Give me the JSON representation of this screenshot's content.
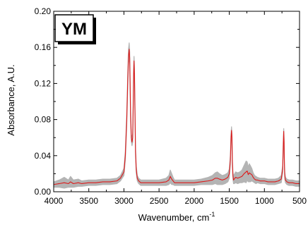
{
  "chart_data": {
    "type": "line",
    "tag": "YM",
    "xlabel_main": "Wavenumber, cm",
    "xlabel_sup": "-1",
    "ylabel": "Absorbance, A.U.",
    "xlim": [
      4000,
      500
    ],
    "ylim": [
      0,
      0.2
    ],
    "x_reversed": true,
    "grid": false,
    "x_ticks": [
      {
        "value": 4000,
        "label": "4000"
      },
      {
        "value": 3500,
        "label": "3500"
      },
      {
        "value": 3000,
        "label": "3000"
      },
      {
        "value": 2500,
        "label": "2500"
      },
      {
        "value": 2000,
        "label": "2000"
      },
      {
        "value": 1500,
        "label": "1500"
      },
      {
        "value": 1000,
        "label": "1000"
      },
      {
        "value": 500,
        "label": "500"
      }
    ],
    "y_ticks": [
      {
        "value": 0.0,
        "label": "0.00"
      },
      {
        "value": 0.04,
        "label": "0.04"
      },
      {
        "value": 0.08,
        "label": "0.08"
      },
      {
        "value": 0.12,
        "label": "0.12"
      },
      {
        "value": 0.16,
        "label": "0.16"
      },
      {
        "value": 0.2,
        "label": "0.20"
      }
    ],
    "colors": {
      "mean": "#dd1a1a",
      "band": "#b4b4b4",
      "axis": "#000000",
      "tag_shadow": "#000000"
    },
    "series": [
      {
        "role": "mean",
        "x": [
          4000,
          3920,
          3850,
          3790,
          3760,
          3720,
          3650,
          3600,
          3500,
          3400,
          3300,
          3200,
          3100,
          3050,
          3000,
          2980,
          2960,
          2945,
          2935,
          2925,
          2918,
          2912,
          2905,
          2895,
          2885,
          2875,
          2868,
          2862,
          2856,
          2850,
          2843,
          2835,
          2825,
          2810,
          2790,
          2760,
          2700,
          2600,
          2500,
          2400,
          2360,
          2340,
          2320,
          2300,
          2280,
          2250,
          2200,
          2100,
          2000,
          1900,
          1800,
          1740,
          1700,
          1670,
          1640,
          1600,
          1560,
          1520,
          1500,
          1485,
          1475,
          1468,
          1462,
          1456,
          1448,
          1440,
          1430,
          1410,
          1380,
          1350,
          1320,
          1290,
          1260,
          1245,
          1230,
          1215,
          1200,
          1180,
          1160,
          1140,
          1120,
          1100,
          1060,
          1000,
          950,
          900,
          850,
          800,
          760,
          740,
          730,
          725,
          720,
          715,
          710,
          700,
          680,
          650,
          600,
          550,
          500
        ],
        "y": [
          0.008,
          0.009,
          0.01,
          0.009,
          0.011,
          0.009,
          0.01,
          0.009,
          0.01,
          0.01,
          0.011,
          0.011,
          0.012,
          0.015,
          0.022,
          0.04,
          0.08,
          0.125,
          0.15,
          0.158,
          0.148,
          0.12,
          0.085,
          0.06,
          0.055,
          0.06,
          0.095,
          0.13,
          0.145,
          0.13,
          0.09,
          0.045,
          0.025,
          0.015,
          0.012,
          0.01,
          0.01,
          0.01,
          0.01,
          0.011,
          0.013,
          0.017,
          0.014,
          0.012,
          0.01,
          0.01,
          0.01,
          0.01,
          0.01,
          0.011,
          0.012,
          0.013,
          0.015,
          0.015,
          0.014,
          0.013,
          0.014,
          0.016,
          0.02,
          0.035,
          0.06,
          0.068,
          0.06,
          0.032,
          0.018,
          0.013,
          0.014,
          0.016,
          0.015,
          0.016,
          0.017,
          0.02,
          0.022,
          0.023,
          0.019,
          0.021,
          0.02,
          0.019,
          0.016,
          0.014,
          0.013,
          0.013,
          0.012,
          0.012,
          0.011,
          0.011,
          0.011,
          0.012,
          0.014,
          0.025,
          0.055,
          0.067,
          0.055,
          0.03,
          0.018,
          0.013,
          0.011,
          0.01,
          0.01,
          0.009,
          0.009
        ]
      },
      {
        "role": "band-upper",
        "x": [
          4000,
          3920,
          3850,
          3790,
          3760,
          3720,
          3650,
          3600,
          3500,
          3400,
          3300,
          3200,
          3100,
          3050,
          3000,
          2980,
          2960,
          2945,
          2935,
          2925,
          2918,
          2912,
          2905,
          2895,
          2885,
          2875,
          2868,
          2862,
          2856,
          2850,
          2843,
          2835,
          2825,
          2810,
          2790,
          2760,
          2700,
          2600,
          2500,
          2400,
          2360,
          2340,
          2320,
          2300,
          2280,
          2250,
          2200,
          2100,
          2000,
          1900,
          1800,
          1740,
          1700,
          1670,
          1640,
          1600,
          1560,
          1520,
          1500,
          1485,
          1475,
          1468,
          1462,
          1456,
          1448,
          1440,
          1430,
          1410,
          1380,
          1350,
          1320,
          1290,
          1260,
          1245,
          1230,
          1215,
          1200,
          1180,
          1160,
          1140,
          1120,
          1100,
          1060,
          1000,
          950,
          900,
          850,
          800,
          760,
          740,
          730,
          725,
          720,
          715,
          710,
          700,
          680,
          650,
          600,
          550,
          500
        ],
        "y": [
          0.011,
          0.013,
          0.016,
          0.013,
          0.017,
          0.013,
          0.014,
          0.012,
          0.013,
          0.013,
          0.014,
          0.014,
          0.015,
          0.018,
          0.026,
          0.045,
          0.086,
          0.132,
          0.158,
          0.165,
          0.155,
          0.126,
          0.09,
          0.064,
          0.059,
          0.065,
          0.1,
          0.136,
          0.15,
          0.136,
          0.095,
          0.049,
          0.029,
          0.018,
          0.015,
          0.013,
          0.013,
          0.013,
          0.013,
          0.015,
          0.018,
          0.024,
          0.02,
          0.016,
          0.013,
          0.013,
          0.013,
          0.013,
          0.013,
          0.014,
          0.016,
          0.018,
          0.021,
          0.022,
          0.02,
          0.018,
          0.019,
          0.021,
          0.025,
          0.04,
          0.064,
          0.072,
          0.064,
          0.036,
          0.022,
          0.017,
          0.019,
          0.022,
          0.021,
          0.022,
          0.024,
          0.029,
          0.034,
          0.033,
          0.027,
          0.031,
          0.029,
          0.026,
          0.021,
          0.018,
          0.017,
          0.016,
          0.015,
          0.015,
          0.014,
          0.014,
          0.014,
          0.015,
          0.018,
          0.029,
          0.059,
          0.07,
          0.059,
          0.034,
          0.022,
          0.016,
          0.014,
          0.013,
          0.013,
          0.012,
          0.012
        ]
      },
      {
        "role": "band-lower",
        "x": [
          4000,
          3920,
          3850,
          3790,
          3760,
          3720,
          3650,
          3600,
          3500,
          3400,
          3300,
          3200,
          3100,
          3050,
          3000,
          2980,
          2960,
          2945,
          2935,
          2925,
          2918,
          2912,
          2905,
          2895,
          2885,
          2875,
          2868,
          2862,
          2856,
          2850,
          2843,
          2835,
          2825,
          2810,
          2790,
          2760,
          2700,
          2600,
          2500,
          2400,
          2360,
          2340,
          2320,
          2300,
          2280,
          2250,
          2200,
          2100,
          2000,
          1900,
          1800,
          1740,
          1700,
          1670,
          1640,
          1600,
          1560,
          1520,
          1500,
          1485,
          1475,
          1468,
          1462,
          1456,
          1448,
          1440,
          1430,
          1410,
          1380,
          1350,
          1320,
          1290,
          1260,
          1245,
          1230,
          1215,
          1200,
          1180,
          1160,
          1140,
          1120,
          1100,
          1060,
          1000,
          950,
          900,
          850,
          800,
          760,
          740,
          730,
          725,
          720,
          715,
          710,
          700,
          680,
          650,
          600,
          550,
          500
        ],
        "y": [
          0.005,
          0.005,
          0.004,
          0.005,
          0.005,
          0.005,
          0.006,
          0.006,
          0.007,
          0.007,
          0.008,
          0.008,
          0.009,
          0.012,
          0.018,
          0.035,
          0.074,
          0.118,
          0.142,
          0.151,
          0.141,
          0.114,
          0.08,
          0.056,
          0.051,
          0.055,
          0.09,
          0.124,
          0.14,
          0.124,
          0.085,
          0.041,
          0.021,
          0.012,
          0.009,
          0.007,
          0.007,
          0.007,
          0.007,
          0.007,
          0.008,
          0.01,
          0.008,
          0.008,
          0.007,
          0.007,
          0.007,
          0.007,
          0.007,
          0.008,
          0.008,
          0.008,
          0.009,
          0.008,
          0.008,
          0.008,
          0.009,
          0.011,
          0.015,
          0.03,
          0.056,
          0.064,
          0.056,
          0.028,
          0.014,
          0.009,
          0.009,
          0.01,
          0.009,
          0.01,
          0.01,
          0.011,
          0.01,
          0.013,
          0.011,
          0.011,
          0.011,
          0.012,
          0.011,
          0.01,
          0.009,
          0.01,
          0.009,
          0.009,
          0.008,
          0.008,
          0.008,
          0.009,
          0.01,
          0.021,
          0.051,
          0.064,
          0.051,
          0.026,
          0.014,
          0.01,
          0.008,
          0.007,
          0.007,
          0.006,
          0.006
        ]
      }
    ]
  }
}
